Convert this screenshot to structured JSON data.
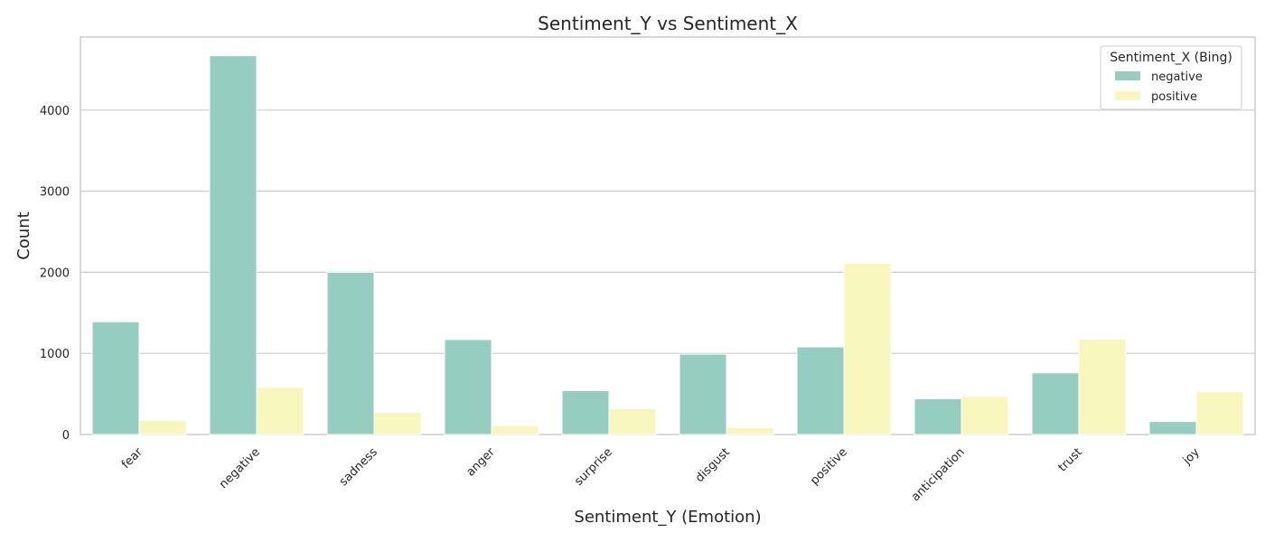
{
  "chart_data": {
    "type": "bar",
    "title": "Sentiment_Y vs Sentiment_X",
    "xlabel": "Sentiment_Y (Emotion)",
    "ylabel": "Count",
    "categories": [
      "fear",
      "negative",
      "sadness",
      "anger",
      "surprise",
      "disgust",
      "positive",
      "anticipation",
      "trust",
      "joy"
    ],
    "series": [
      {
        "name": "negative",
        "color": "#96cdc1",
        "values": [
          1390,
          4670,
          2000,
          1170,
          540,
          990,
          1080,
          440,
          760,
          160
        ]
      },
      {
        "name": "positive",
        "color": "#f7f6bc",
        "values": [
          175,
          580,
          270,
          110,
          320,
          85,
          2110,
          470,
          1175,
          530
        ]
      }
    ],
    "ylim": [
      0,
      4900
    ],
    "yticks": [
      0,
      1000,
      2000,
      3000,
      4000
    ],
    "legend": {
      "title": "Sentiment_X (Bing)",
      "placement": "top-right"
    },
    "grid": true
  }
}
